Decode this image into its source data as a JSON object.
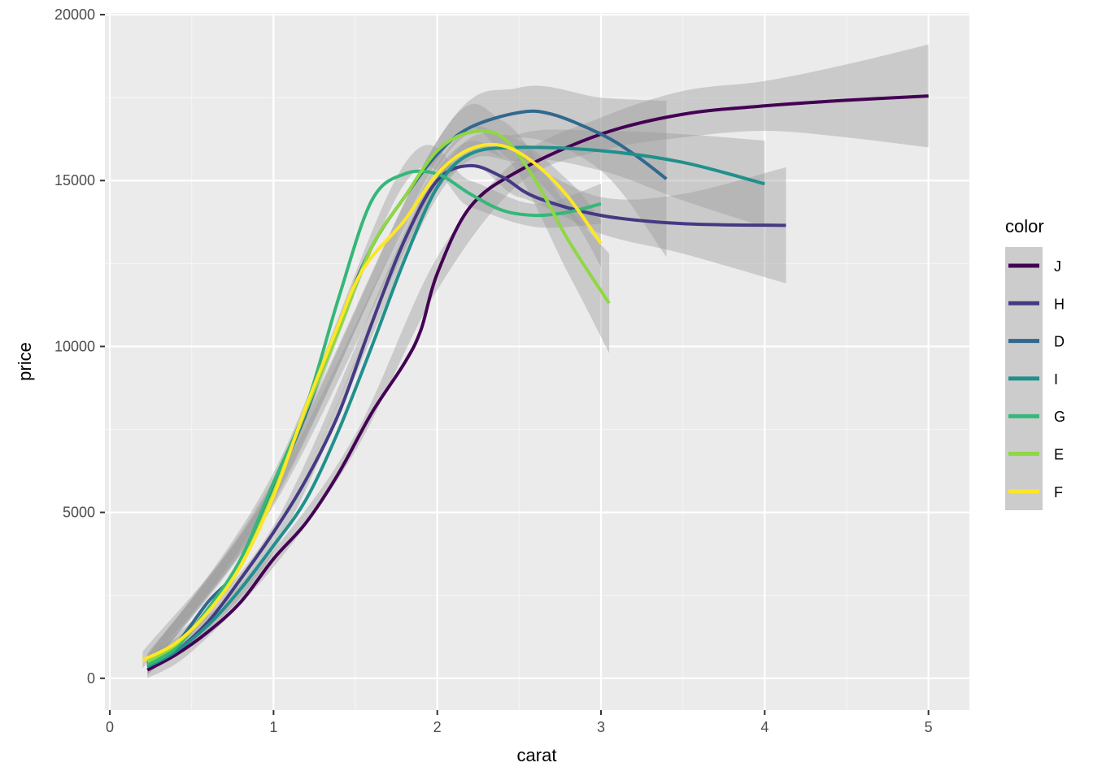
{
  "chart_data": {
    "type": "line",
    "xlabel": "carat",
    "ylabel": "price",
    "xlim": [
      -0.03,
      5.25
    ],
    "ylim": [
      -960,
      20050
    ],
    "x_ticks": [
      "0",
      "1",
      "2",
      "3",
      "4",
      "5"
    ],
    "y_ticks": [
      "0",
      "5000",
      "10000",
      "15000",
      "20000"
    ],
    "grid": true,
    "legend_title": "color",
    "legend_position": "right",
    "series": [
      {
        "name": "J",
        "color": "#440154",
        "points": [
          [
            0.23,
            250
          ],
          [
            0.4,
            700
          ],
          [
            0.6,
            1400
          ],
          [
            0.8,
            2300
          ],
          [
            1.0,
            3600
          ],
          [
            1.2,
            4700
          ],
          [
            1.4,
            6200
          ],
          [
            1.6,
            8000
          ],
          [
            1.8,
            9500
          ],
          [
            1.9,
            10500
          ],
          [
            2.0,
            12200
          ],
          [
            2.2,
            14200
          ],
          [
            2.5,
            15300
          ],
          [
            3.0,
            16400
          ],
          [
            3.5,
            17000
          ],
          [
            4.0,
            17250
          ],
          [
            4.5,
            17420
          ],
          [
            5.0,
            17550
          ]
        ],
        "band": [
          [
            0.23,
            0,
            700
          ],
          [
            0.5,
            800,
            1200
          ],
          [
            1.0,
            3350,
            3850
          ],
          [
            1.5,
            6850,
            7350
          ],
          [
            2.0,
            11700,
            12700
          ],
          [
            2.5,
            14900,
            15700
          ],
          [
            3.0,
            15900,
            16900
          ],
          [
            3.5,
            16300,
            17700
          ],
          [
            4.0,
            16500,
            18000
          ],
          [
            4.5,
            16300,
            18500
          ],
          [
            5.0,
            16000,
            19100
          ]
        ]
      },
      {
        "name": "H",
        "color": "#443A83",
        "points": [
          [
            0.23,
            350
          ],
          [
            0.4,
            800
          ],
          [
            0.6,
            1700
          ],
          [
            0.8,
            3000
          ],
          [
            1.0,
            4400
          ],
          [
            1.2,
            6000
          ],
          [
            1.4,
            8000
          ],
          [
            1.6,
            10700
          ],
          [
            1.8,
            13200
          ],
          [
            2.0,
            15000
          ],
          [
            2.2,
            15450
          ],
          [
            2.4,
            15100
          ],
          [
            2.6,
            14500
          ],
          [
            3.0,
            13950
          ],
          [
            3.5,
            13700
          ],
          [
            4.13,
            13650
          ]
        ],
        "band": [
          [
            0.23,
            100,
            600
          ],
          [
            1.0,
            4200,
            4600
          ],
          [
            2.0,
            14700,
            15300
          ],
          [
            2.5,
            14500,
            15500
          ],
          [
            3.0,
            13400,
            14500
          ],
          [
            3.5,
            12800,
            14600
          ],
          [
            4.13,
            11900,
            15400
          ]
        ]
      },
      {
        "name": "D",
        "color": "#31688E",
        "points": [
          [
            0.23,
            450
          ],
          [
            0.4,
            1000
          ],
          [
            0.6,
            2300
          ],
          [
            0.8,
            3400
          ],
          [
            1.0,
            5700
          ],
          [
            1.2,
            8000
          ],
          [
            1.4,
            10700
          ],
          [
            1.6,
            13000
          ],
          [
            1.8,
            14500
          ],
          [
            2.0,
            15800
          ],
          [
            2.2,
            16600
          ],
          [
            2.5,
            17050
          ],
          [
            2.7,
            17000
          ],
          [
            3.0,
            16400
          ],
          [
            3.2,
            15800
          ],
          [
            3.4,
            15050
          ]
        ],
        "band": [
          [
            0.23,
            200,
            700
          ],
          [
            1.0,
            5400,
            6000
          ],
          [
            2.0,
            15400,
            16200
          ],
          [
            2.5,
            16300,
            17800
          ],
          [
            3.0,
            15300,
            17500
          ],
          [
            3.4,
            12700,
            17400
          ]
        ]
      },
      {
        "name": "I",
        "color": "#21908C",
        "points": [
          [
            0.23,
            350
          ],
          [
            0.4,
            800
          ],
          [
            0.6,
            1600
          ],
          [
            0.8,
            2700
          ],
          [
            1.0,
            4000
          ],
          [
            1.2,
            5400
          ],
          [
            1.4,
            7500
          ],
          [
            1.6,
            10000
          ],
          [
            1.8,
            12600
          ],
          [
            2.0,
            14800
          ],
          [
            2.2,
            15800
          ],
          [
            2.5,
            16000
          ],
          [
            3.0,
            15900
          ],
          [
            3.5,
            15550
          ],
          [
            4.0,
            14900
          ]
        ],
        "band": [
          [
            0.23,
            100,
            600
          ],
          [
            1.0,
            3800,
            4200
          ],
          [
            2.0,
            14500,
            15100
          ],
          [
            2.5,
            15600,
            16400
          ],
          [
            3.0,
            15300,
            16500
          ],
          [
            3.5,
            14400,
            16400
          ],
          [
            4.0,
            13600,
            16200
          ]
        ]
      },
      {
        "name": "G",
        "color": "#35B779",
        "points": [
          [
            0.23,
            400
          ],
          [
            0.4,
            900
          ],
          [
            0.6,
            2100
          ],
          [
            0.8,
            3600
          ],
          [
            1.0,
            5900
          ],
          [
            1.2,
            8200
          ],
          [
            1.4,
            11500
          ],
          [
            1.6,
            14400
          ],
          [
            1.8,
            15200
          ],
          [
            2.0,
            15200
          ],
          [
            2.2,
            14600
          ],
          [
            2.4,
            14100
          ],
          [
            2.6,
            13950
          ],
          [
            2.8,
            14050
          ],
          [
            3.0,
            14300
          ]
        ],
        "band": [
          [
            0.23,
            200,
            650
          ],
          [
            1.0,
            5600,
            6200
          ],
          [
            1.8,
            14900,
            15500
          ],
          [
            2.2,
            14200,
            15000
          ],
          [
            2.6,
            13600,
            14300
          ],
          [
            3.0,
            13700,
            14900
          ]
        ]
      },
      {
        "name": "E",
        "color": "#8FD744",
        "points": [
          [
            0.23,
            500
          ],
          [
            0.4,
            1000
          ],
          [
            0.6,
            2000
          ],
          [
            0.8,
            3400
          ],
          [
            1.0,
            5600
          ],
          [
            1.2,
            8100
          ],
          [
            1.4,
            10500
          ],
          [
            1.6,
            13000
          ],
          [
            1.8,
            14500
          ],
          [
            2.0,
            15900
          ],
          [
            2.2,
            16450
          ],
          [
            2.4,
            16300
          ],
          [
            2.6,
            15000
          ],
          [
            2.8,
            13200
          ],
          [
            3.05,
            11300
          ]
        ],
        "band": [
          [
            0.23,
            250,
            750
          ],
          [
            1.0,
            5300,
            5900
          ],
          [
            2.0,
            15600,
            16200
          ],
          [
            2.4,
            15800,
            16800
          ],
          [
            2.8,
            12200,
            14200
          ],
          [
            3.05,
            9800,
            12800
          ]
        ]
      },
      {
        "name": "F",
        "color": "#FDE725",
        "points": [
          [
            0.2,
            550
          ],
          [
            0.4,
            1050
          ],
          [
            0.6,
            2000
          ],
          [
            0.8,
            3400
          ],
          [
            1.0,
            5500
          ],
          [
            1.2,
            8200
          ],
          [
            1.4,
            10700
          ],
          [
            1.5,
            11900
          ],
          [
            1.6,
            12700
          ],
          [
            1.8,
            13800
          ],
          [
            2.0,
            15200
          ],
          [
            2.2,
            15950
          ],
          [
            2.4,
            16050
          ],
          [
            2.6,
            15500
          ],
          [
            2.8,
            14500
          ],
          [
            3.0,
            13100
          ]
        ],
        "band": [
          [
            0.2,
            300,
            800
          ],
          [
            1.0,
            5200,
            5800
          ],
          [
            2.0,
            14900,
            15500
          ],
          [
            2.4,
            15700,
            16400
          ],
          [
            2.8,
            14000,
            15000
          ],
          [
            3.0,
            12400,
            13800
          ]
        ]
      }
    ]
  }
}
